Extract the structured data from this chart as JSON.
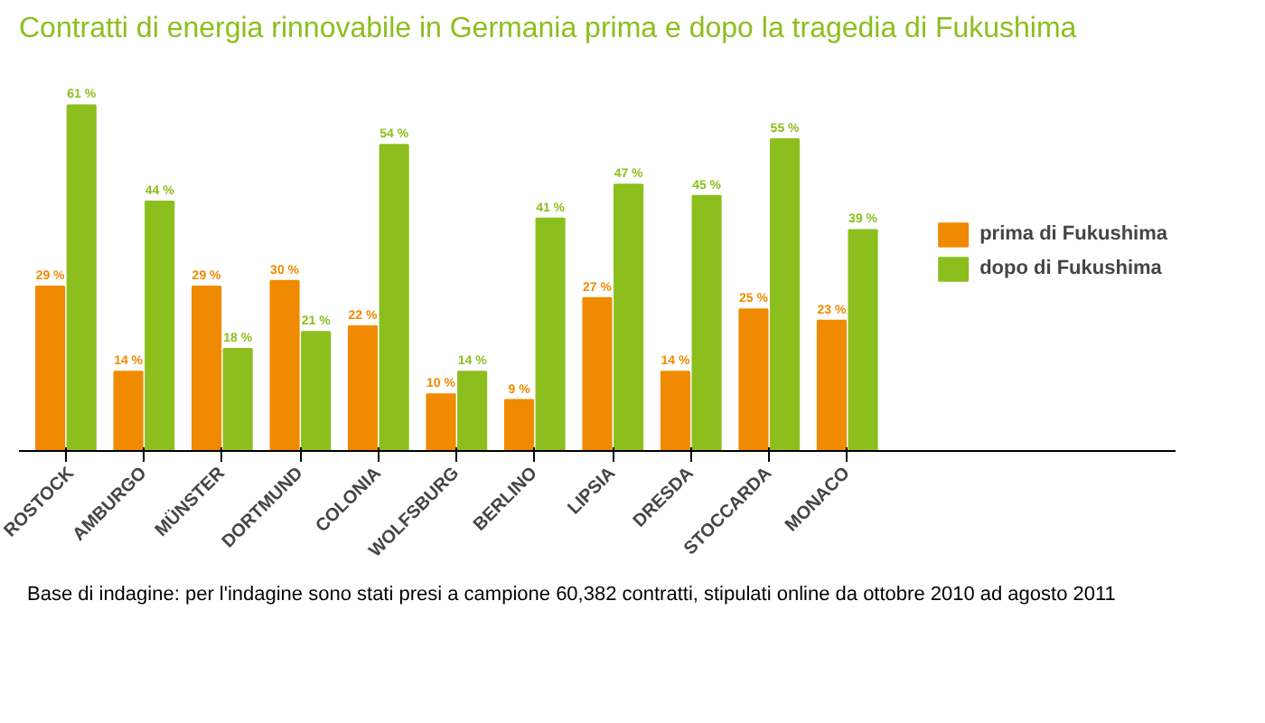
{
  "chart_data": {
    "type": "bar",
    "title": "Contratti di energia rinnovabile in Germania prima e dopo la tragedia di Fukushima",
    "categories": [
      "ROSTOCK",
      "AMBURGO",
      "MÜNSTER",
      "DORTMUND",
      "COLONIA",
      "WOLFSBURG",
      "BERLINO",
      "LIPSIA",
      "DRESDA",
      "STOCCARDA",
      "MONACO"
    ],
    "series": [
      {
        "name": "prima di Fukushima",
        "color": "#f08a00",
        "values": [
          29,
          14,
          29,
          30,
          22,
          10,
          9,
          27,
          14,
          25,
          23
        ],
        "value_labels": [
          "29 %",
          "14 %",
          "29 %",
          "30 %",
          "22 %",
          "10 %",
          "9 %",
          "27 %",
          "14 %",
          "25 %",
          "23 %"
        ]
      },
      {
        "name": "dopo di Fukushima",
        "color": "#8cbf1e",
        "values": [
          61,
          44,
          18,
          21,
          54,
          14,
          41,
          47,
          45,
          55,
          39
        ],
        "value_labels": [
          "61 %",
          "44 %",
          "18 %",
          "21 %",
          "54 %",
          "14 %",
          "41 %",
          "47 %",
          "45 %",
          "55 %",
          "39 %"
        ]
      }
    ],
    "legend": "right",
    "annotations": [
      "Base di indagine: per l'indagine sono stati presi a campione 60,382 contratti, stipulati online da ottobre 2010 ad agosto 2011"
    ]
  }
}
